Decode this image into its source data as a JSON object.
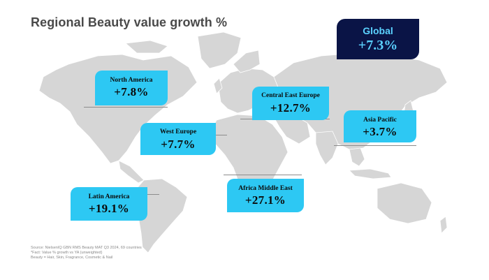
{
  "title": "Regional Beauty value growth %",
  "global": {
    "label": "Global",
    "value": "+7.3%"
  },
  "regions": [
    {
      "name": "North America",
      "value": "+7.8%"
    },
    {
      "name": "Central East Europe",
      "value": "+12.7%"
    },
    {
      "name": "West Europe",
      "value": "+7.7%"
    },
    {
      "name": "Asia Pacific",
      "value": "+3.7%"
    },
    {
      "name": "Latin America",
      "value": "+19.1%"
    },
    {
      "name": "Africa Middle East",
      "value": "+27.1%"
    }
  ],
  "source_notes": [
    "Source: NielsenIQ GBN RMS Beauty MAT Q3 2024, 69 countries",
    "*Fact: Value % growth vs YA (unweighted)",
    "Beauty = Hair, Skin, Fragrance, Cosmetic & Nail"
  ],
  "colors": {
    "region_box": "#2dc8f3",
    "global_box": "#0a1446",
    "global_text": "#5bd2ff",
    "land": "#d6d6d6"
  }
}
